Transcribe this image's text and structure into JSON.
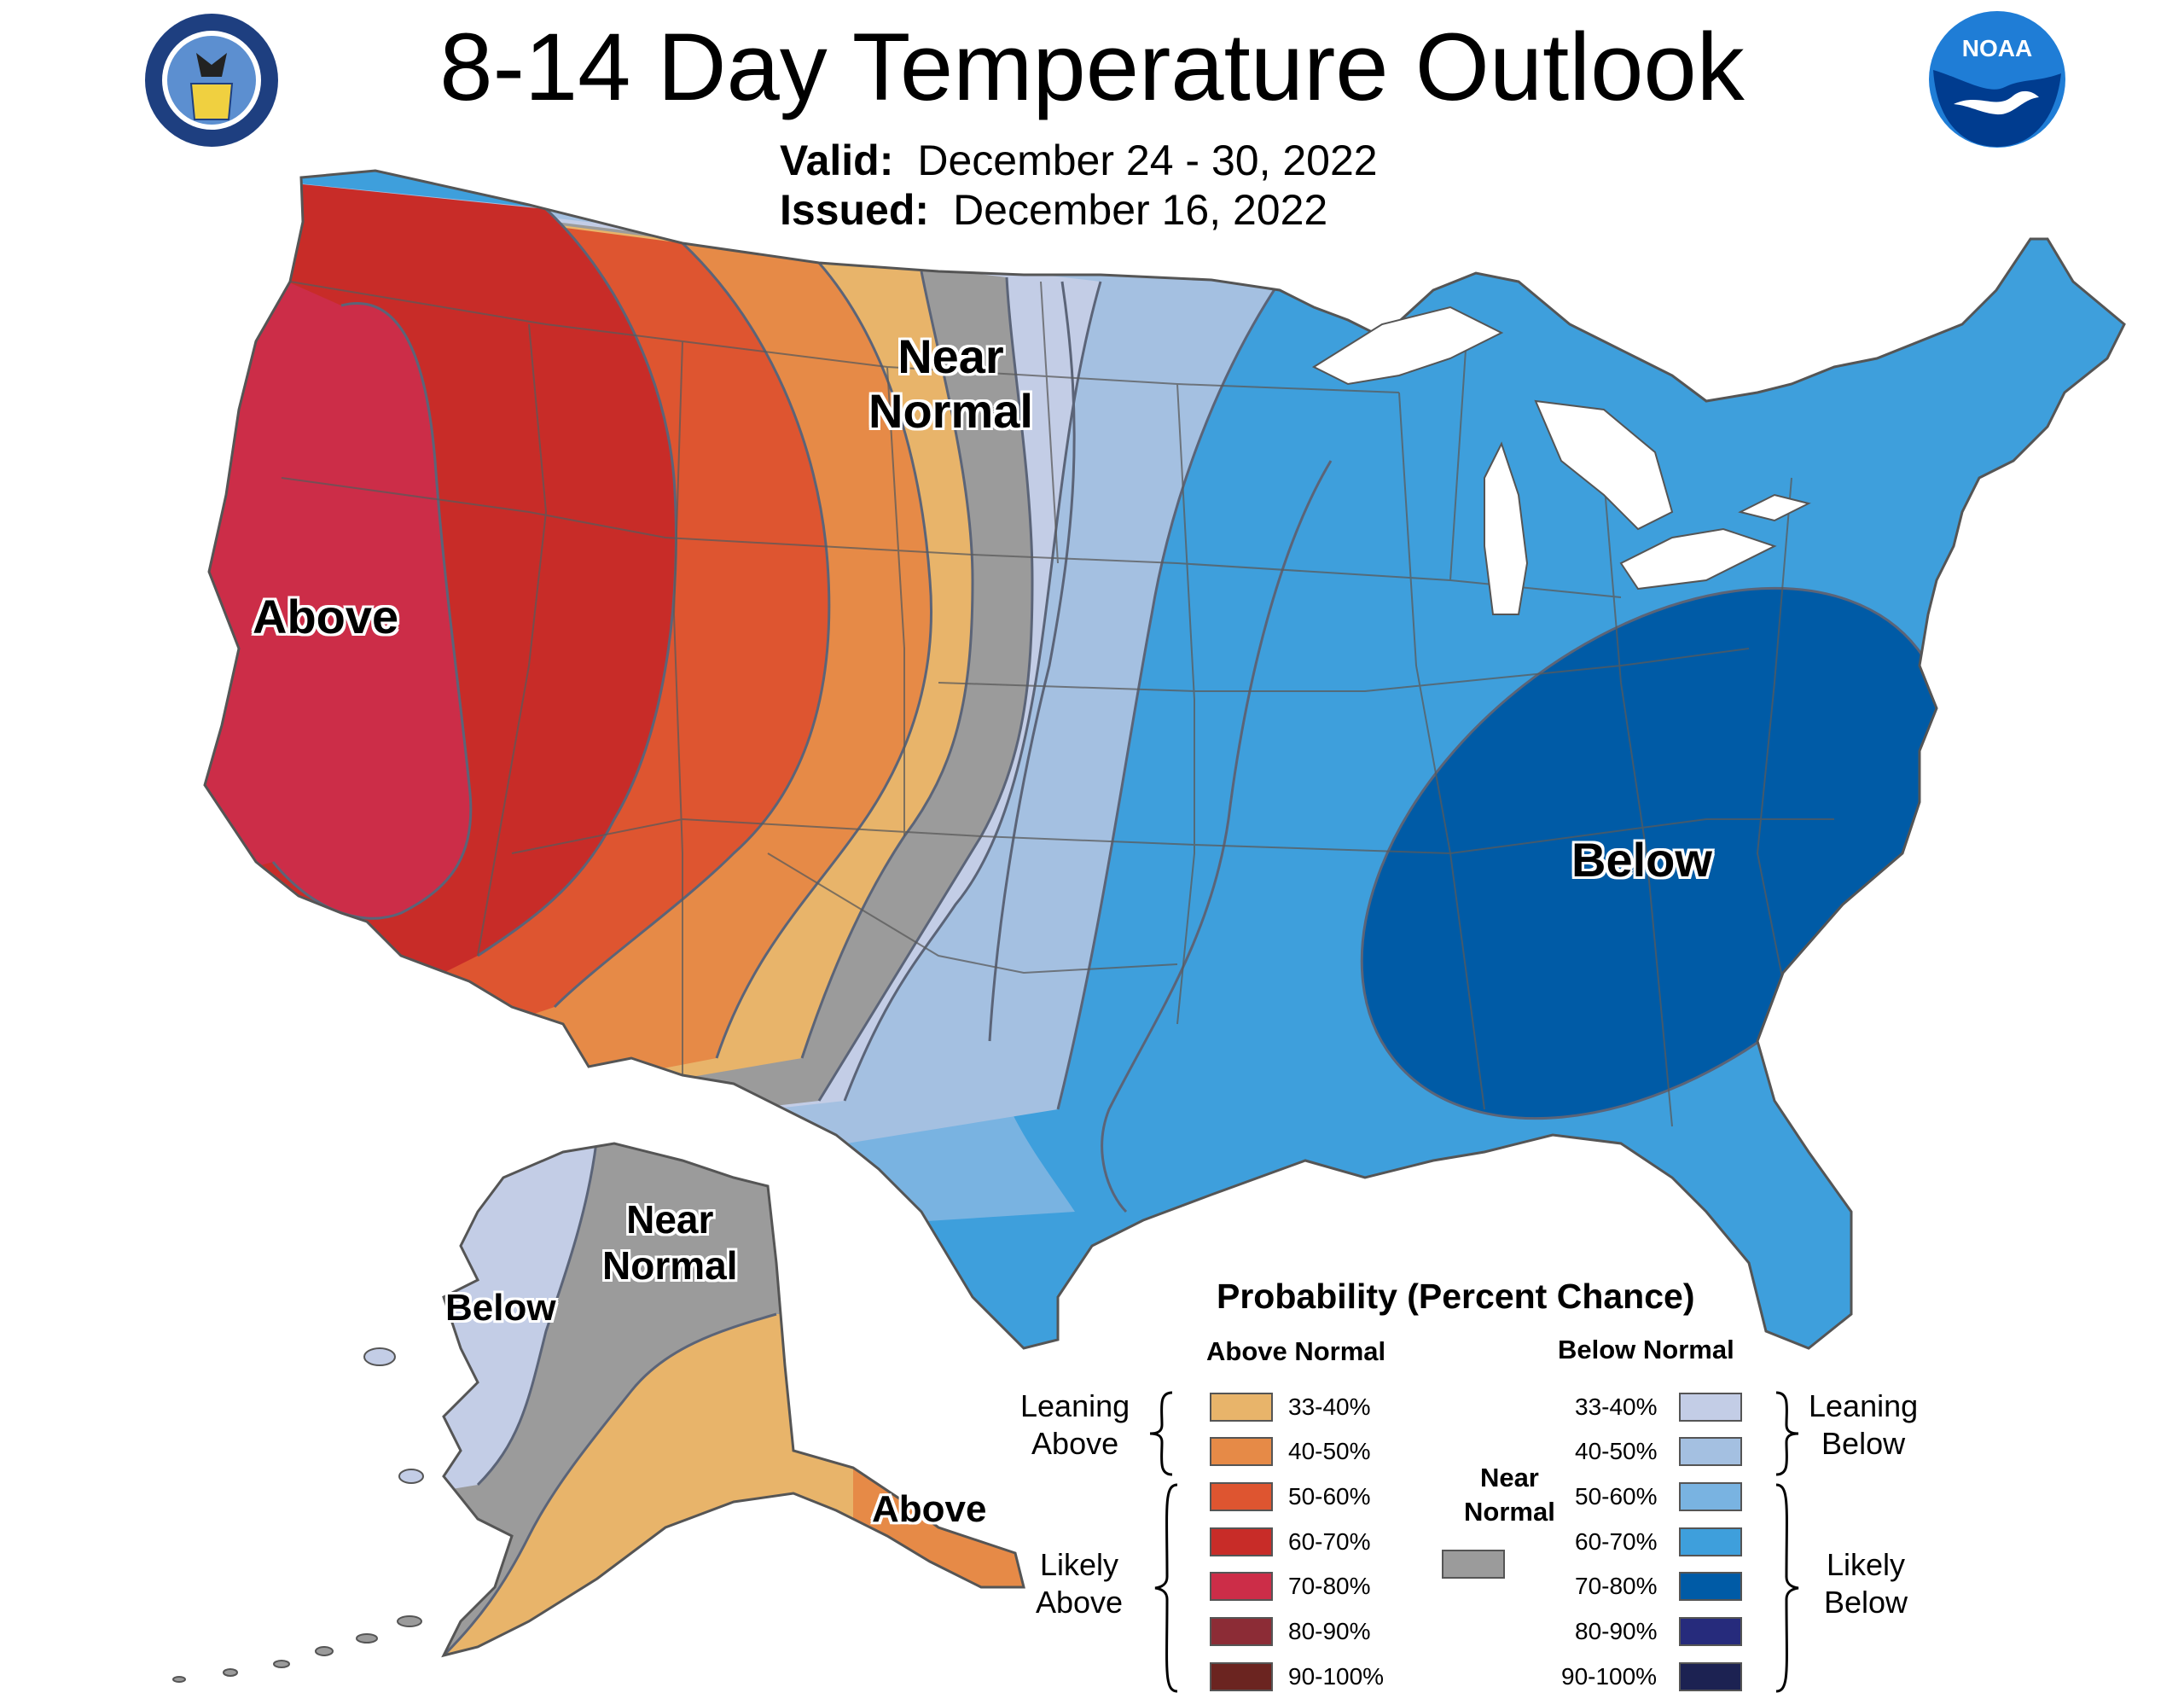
{
  "title": "8-14 Day Temperature Outlook",
  "valid_label": "Valid:",
  "valid_value": "December 24 - 30, 2022",
  "issued_label": "Issued:",
  "issued_value": "December 16, 2022",
  "logos": {
    "left": "department-of-commerce-seal",
    "right": "noaa-logo",
    "noaa_text": "NOAA"
  },
  "map_labels": {
    "above": "Above",
    "near_normal_line1": "Near",
    "near_normal_line2": "Normal",
    "below": "Below",
    "ak_near_line1": "Near",
    "ak_near_line2": "Normal",
    "ak_below": "Below",
    "ak_above": "Above"
  },
  "legend": {
    "title": "Probability (Percent Chance)",
    "above_header": "Above Normal",
    "below_header": "Below Normal",
    "near_header_line1": "Near",
    "near_header_line2": "Normal",
    "near_color": "#9b9b9b",
    "leaning_above_line1": "Leaning",
    "leaning_above_line2": "Above",
    "likely_above_line1": "Likely",
    "likely_above_line2": "Above",
    "leaning_below_line1": "Leaning",
    "leaning_below_line2": "Below",
    "likely_below_line1": "Likely",
    "likely_below_line2": "Below",
    "above": [
      {
        "label": "33-40%",
        "color": "#e8b46a"
      },
      {
        "label": "40-50%",
        "color": "#e68a47"
      },
      {
        "label": "50-60%",
        "color": "#de5530"
      },
      {
        "label": "60-70%",
        "color": "#c82c28"
      },
      {
        "label": "70-80%",
        "color": "#cc2d48"
      },
      {
        "label": "80-90%",
        "color": "#8c2c36"
      },
      {
        "label": "90-100%",
        "color": "#6b2420"
      }
    ],
    "below": [
      {
        "label": "33-40%",
        "color": "#c3cde6"
      },
      {
        "label": "40-50%",
        "color": "#a4c0e1"
      },
      {
        "label": "50-60%",
        "color": "#79b3e1"
      },
      {
        "label": "60-70%",
        "color": "#3e9fdc"
      },
      {
        "label": "70-80%",
        "color": "#005ba6"
      },
      {
        "label": "80-90%",
        "color": "#262b7c"
      },
      {
        "label": "90-100%",
        "color": "#1c2252"
      }
    ]
  }
}
